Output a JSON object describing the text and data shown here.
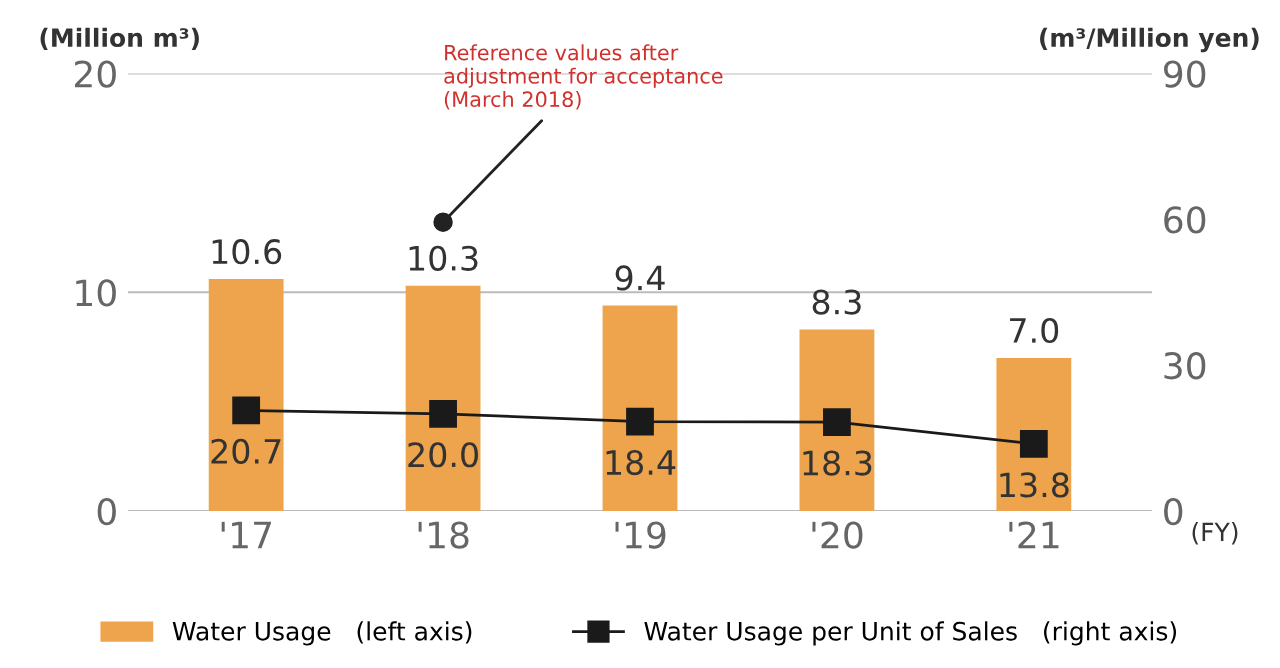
{
  "chart_data": {
    "type": "bar",
    "categories": [
      "'17",
      "'18",
      "'19",
      "'20",
      "'21"
    ],
    "series": [
      {
        "name": "Water Usage   (left axis)",
        "color": "#eda44c",
        "values": [
          10.6,
          10.3,
          9.4,
          8.3,
          7.0
        ],
        "value_labels": [
          "10.6",
          "10.3",
          "9.4",
          "8.3",
          "7.0"
        ]
      },
      {
        "name": "Water Usage per Unit of Sales   (right axis)",
        "type": "line",
        "axis": "y2",
        "color": "#1a1a1a",
        "values": [
          20.7,
          20.0,
          18.4,
          18.3,
          13.8
        ],
        "value_labels": [
          "20.7",
          "20.0",
          "18.4",
          "18.3",
          "13.8"
        ],
        "marker": "square"
      }
    ],
    "ylabel": "(Million m³)",
    "y2label": "(m³/Million yen)",
    "xlabel": "(FY)",
    "ylim": [
      0,
      20
    ],
    "yticks": [
      0,
      10,
      20
    ],
    "y2lim": [
      0,
      90
    ],
    "y2ticks": [
      0,
      30,
      60,
      90
    ],
    "grid": "y",
    "legend": "bottom",
    "annotations": [
      {
        "text": "Reference values after\nadjustment for acceptance\n(March 2018)",
        "x": "'18",
        "y": 13.2
      }
    ]
  }
}
